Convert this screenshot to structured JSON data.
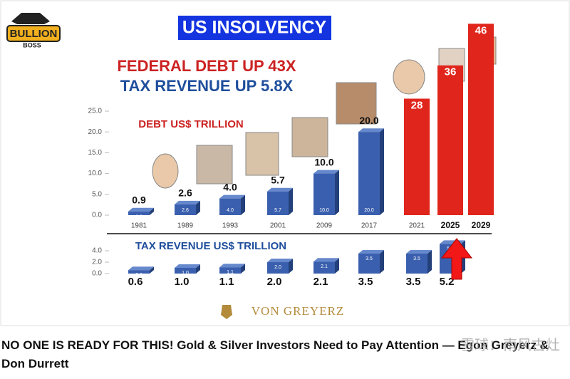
{
  "logo": {
    "top": "BULLION",
    "bottom": "BOSS"
  },
  "header": {
    "title": "US INSOLVENCY",
    "lines": [
      "FEDERAL DEBT UP 43X",
      "TAX REVENUE UP 5.8X"
    ]
  },
  "chart_data": [
    {
      "type": "bar",
      "title": "DEBT US$ TRILLION",
      "categories": [
        "1981",
        "1989",
        "1993",
        "2001",
        "2009",
        "2017",
        "2021",
        "2025",
        "2029"
      ],
      "values": [
        0.9,
        2.6,
        4.0,
        5.7,
        10.0,
        20.0,
        28,
        36,
        46
      ],
      "value_labels": [
        "0.9",
        "2.6",
        "4.0",
        "5.7",
        "10.0",
        "20.0",
        "28",
        "36",
        "46"
      ],
      "colors": [
        "#3a5fae",
        "#3a5fae",
        "#3a5fae",
        "#3a5fae",
        "#3a5fae",
        "#3a5fae",
        "#e0261c",
        "#e0261c",
        "#e0261c"
      ],
      "ylim": [
        0,
        25
      ],
      "yticks": [
        {
          "value": 0,
          "label": "0.0"
        },
        {
          "value": 5,
          "label": "5.0"
        },
        {
          "value": 10,
          "label": "10.0"
        },
        {
          "value": 15,
          "label": "15.0"
        },
        {
          "value": 20,
          "label": "20.0"
        },
        {
          "value": 25,
          "label": "25.0"
        }
      ]
    },
    {
      "type": "bar",
      "title": "TAX REVENUE US$ TRILLION",
      "values": [
        0.6,
        1.0,
        1.1,
        2.0,
        2.1,
        3.5,
        3.5,
        5.2
      ],
      "value_labels": [
        "0.6",
        "1.0",
        "1.1",
        "2.0",
        "2.1",
        "3.5",
        "3.5",
        "5.2"
      ],
      "color": "#3a5fae",
      "ylim": [
        0,
        4
      ],
      "yticks": [
        {
          "value": 0,
          "label": "0.0"
        },
        {
          "value": 2,
          "label": "2.0"
        },
        {
          "value": 4,
          "label": "4.0"
        }
      ]
    }
  ],
  "brand": "VON GREYERZ",
  "caption": "NO ONE IS READY FOR THIS! Gold & Silver Investors Need to Pay Attention — Egon Greyerz & Don Durrett",
  "watermark": "雪球：南风古灶"
}
